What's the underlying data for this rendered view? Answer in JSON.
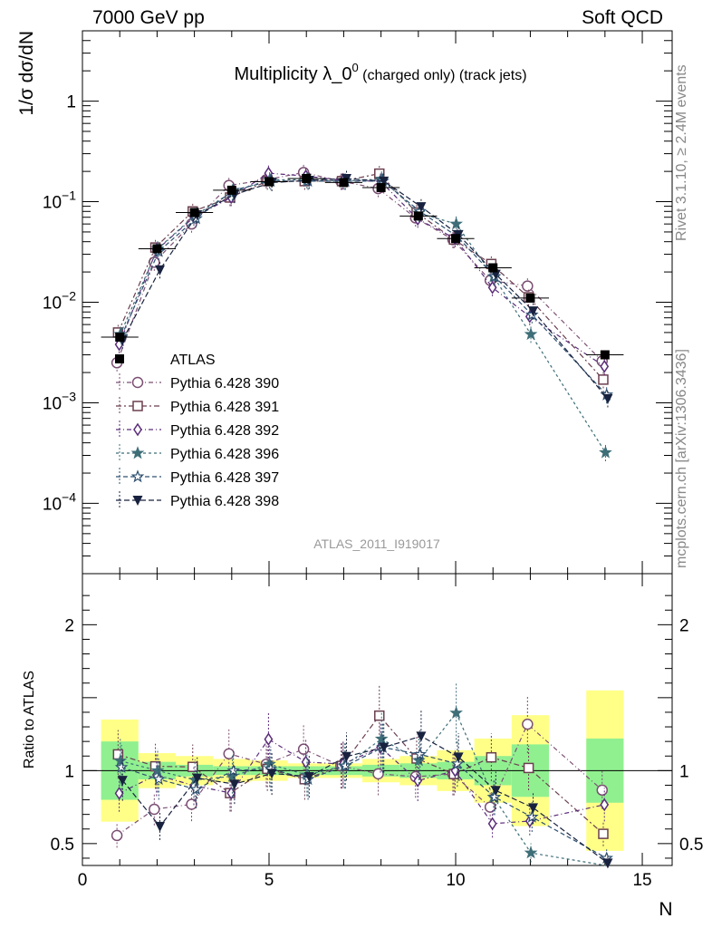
{
  "header": {
    "left": "7000 GeV pp",
    "right": "Soft QCD"
  },
  "side_labels": {
    "rivet": "Rivet 3.1.10, ≥ 2.4M events",
    "mcplots": "mcplots.cern.ch [arXiv:1306.3436]"
  },
  "chart_data": {
    "type": "scatter",
    "title": "Multiplicity λ_0⁰ (charged only) (track jets)",
    "title_main": "Multiplicity λ_0",
    "title_sup": "0",
    "title_rest": " (charged only) (track jets)",
    "analysis_label": "ATLAS_2011_I919017",
    "ylabel": "1/σ dσ/dN",
    "xlabel": "N",
    "ratio_ylabel": "Ratio to ATLAS",
    "xlim": [
      0,
      15.8
    ],
    "ylim": [
      2e-05,
      5
    ],
    "yscale": "log",
    "ratio_ylim": [
      0.35,
      2.35
    ],
    "x_ticks": [
      "0",
      "5",
      "10",
      "15"
    ],
    "y_ticks": [
      {
        "mant": "10",
        "exp": "−4",
        "v": 0.0001
      },
      {
        "mant": "10",
        "exp": "−3",
        "v": 0.001
      },
      {
        "mant": "10",
        "exp": "−2",
        "v": 0.01
      },
      {
        "mant": "10",
        "exp": "−1",
        "v": 0.1
      },
      {
        "mant": "1",
        "exp": "",
        "v": 1
      }
    ],
    "ratio_ticks": [
      "0.5",
      "1",
      "2"
    ],
    "legend_position": "lower-left",
    "data": {
      "name": "ATLAS",
      "x": [
        1,
        2,
        3,
        4,
        5,
        6,
        7,
        8,
        9,
        10,
        11,
        12,
        14
      ],
      "y": [
        0.0045,
        0.034,
        0.078,
        0.13,
        0.158,
        0.17,
        0.155,
        0.138,
        0.072,
        0.043,
        0.022,
        0.011,
        0.003
      ],
      "band_inner": [
        0.2,
        0.06,
        0.04,
        0.03,
        0.03,
        0.03,
        0.03,
        0.04,
        0.05,
        0.06,
        0.1,
        0.18,
        0.22
      ],
      "band_outer": [
        0.35,
        0.12,
        0.1,
        0.08,
        0.07,
        0.05,
        0.05,
        0.08,
        0.1,
        0.14,
        0.22,
        0.38,
        0.55
      ]
    },
    "series": [
      {
        "name": "Pythia 6.428 390",
        "color": "#7b4f73",
        "marker": "circle-open",
        "x": [
          1,
          2,
          3,
          4,
          5,
          6,
          7,
          8,
          9,
          10,
          11,
          12,
          14
        ],
        "y": [
          0.0025,
          0.025,
          0.06,
          0.145,
          0.165,
          0.195,
          0.16,
          0.135,
          0.069,
          0.042,
          0.0165,
          0.0145,
          0.0026
        ]
      },
      {
        "name": "Pythia 6.428 391",
        "color": "#6b3f4f",
        "marker": "square-open",
        "x": [
          1,
          2,
          3,
          4,
          5,
          6,
          7,
          8,
          9,
          10,
          11,
          12,
          14
        ],
        "y": [
          0.005,
          0.035,
          0.08,
          0.11,
          0.16,
          0.16,
          0.16,
          0.19,
          0.078,
          0.042,
          0.024,
          0.0112,
          0.0017
        ]
      },
      {
        "name": "Pythia 6.428 392",
        "color": "#5a2d7a",
        "marker": "diamond-open",
        "x": [
          1,
          2,
          3,
          4,
          5,
          6,
          7,
          8,
          9,
          10,
          11,
          12,
          14
        ],
        "y": [
          0.0038,
          0.033,
          0.07,
          0.11,
          0.192,
          0.18,
          0.162,
          0.16,
          0.067,
          0.043,
          0.014,
          0.0072,
          0.0023
        ]
      },
      {
        "name": "Pythia 6.428 396",
        "color": "#3e6e78",
        "marker": "star-filled",
        "x": [
          1,
          2,
          3,
          4,
          5,
          6,
          7,
          8,
          9,
          10,
          11,
          12,
          14
        ],
        "y": [
          0.0048,
          0.034,
          0.073,
          0.125,
          0.165,
          0.165,
          0.16,
          0.168,
          0.077,
          0.06,
          0.018,
          0.0048,
          0.00032
        ]
      },
      {
        "name": "Pythia 6.428 397",
        "color": "#2e5070",
        "marker": "star-open",
        "x": [
          1,
          2,
          3,
          4,
          5,
          6,
          7,
          8,
          9,
          10,
          11,
          12,
          14
        ],
        "y": [
          0.0046,
          0.032,
          0.068,
          0.13,
          0.16,
          0.16,
          0.16,
          0.16,
          0.08,
          0.045,
          0.018,
          0.0075,
          0.0012
        ]
      },
      {
        "name": "Pythia 6.428 398",
        "color": "#18223f",
        "marker": "triangle-down",
        "x": [
          1,
          2,
          3,
          4,
          5,
          6,
          7,
          8,
          9,
          10,
          11,
          12,
          14
        ],
        "y": [
          0.0042,
          0.021,
          0.074,
          0.118,
          0.155,
          0.163,
          0.17,
          0.16,
          0.089,
          0.047,
          0.019,
          0.0082,
          0.0011
        ]
      }
    ]
  }
}
